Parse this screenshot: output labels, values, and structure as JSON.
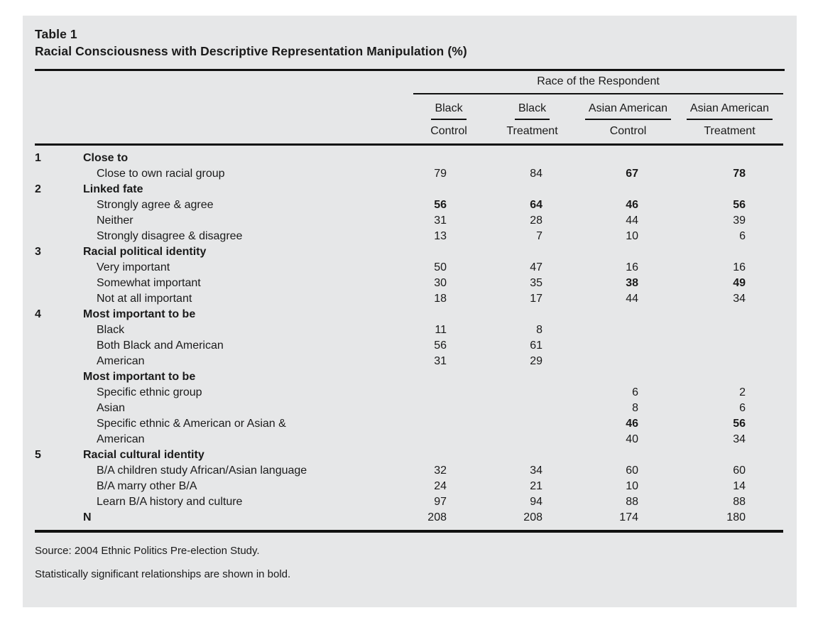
{
  "title": {
    "label": "Table 1",
    "subtitle": "Racial Consciousness with Descriptive Representation Manipulation (%)"
  },
  "header": {
    "span_label": "Race of the Respondent",
    "columns": [
      {
        "group": "Black",
        "sub": "Control"
      },
      {
        "group": "Black",
        "sub": "Treatment"
      },
      {
        "group": "Asian American",
        "sub": "Control"
      },
      {
        "group": "Asian American",
        "sub": "Treatment"
      }
    ]
  },
  "table": {
    "rows": [
      {
        "num": "1",
        "label": "Close to",
        "type": "section",
        "values": [
          "",
          "",
          "",
          ""
        ],
        "bold": [
          0,
          0,
          0,
          0
        ]
      },
      {
        "num": "",
        "label": "Close to own racial group",
        "type": "item",
        "values": [
          "79",
          "84",
          "67",
          "78"
        ],
        "bold": [
          0,
          0,
          1,
          1
        ]
      },
      {
        "num": "2",
        "label": "Linked fate",
        "type": "section",
        "values": [
          "",
          "",
          "",
          ""
        ],
        "bold": [
          0,
          0,
          0,
          0
        ]
      },
      {
        "num": "",
        "label": "Strongly agree & agree",
        "type": "item",
        "values": [
          "56",
          "64",
          "46",
          "56"
        ],
        "bold": [
          1,
          1,
          1,
          1
        ]
      },
      {
        "num": "",
        "label": "Neither",
        "type": "item",
        "values": [
          "31",
          "28",
          "44",
          "39"
        ],
        "bold": [
          0,
          0,
          0,
          0
        ]
      },
      {
        "num": "",
        "label": "Strongly disagree & disagree",
        "type": "item",
        "values": [
          "13",
          "7",
          "10",
          "6"
        ],
        "bold": [
          0,
          0,
          0,
          0
        ]
      },
      {
        "num": "3",
        "label": "Racial political identity",
        "type": "section",
        "values": [
          "",
          "",
          "",
          ""
        ],
        "bold": [
          0,
          0,
          0,
          0
        ]
      },
      {
        "num": "",
        "label": "Very important",
        "type": "item",
        "values": [
          "50",
          "47",
          "16",
          "16"
        ],
        "bold": [
          0,
          0,
          0,
          0
        ]
      },
      {
        "num": "",
        "label": "Somewhat important",
        "type": "item",
        "values": [
          "30",
          "35",
          "38",
          "49"
        ],
        "bold": [
          0,
          0,
          1,
          1
        ]
      },
      {
        "num": "",
        "label": "Not at all important",
        "type": "item",
        "values": [
          "18",
          "17",
          "44",
          "34"
        ],
        "bold": [
          0,
          0,
          0,
          0
        ]
      },
      {
        "num": "4",
        "label": "Most important to be",
        "type": "section",
        "values": [
          "",
          "",
          "",
          ""
        ],
        "bold": [
          0,
          0,
          0,
          0
        ]
      },
      {
        "num": "",
        "label": "Black",
        "type": "item",
        "values": [
          "11",
          "8",
          "",
          ""
        ],
        "bold": [
          0,
          0,
          0,
          0
        ]
      },
      {
        "num": "",
        "label": "Both Black and American",
        "type": "item",
        "values": [
          "56",
          "61",
          "",
          ""
        ],
        "bold": [
          0,
          0,
          0,
          0
        ]
      },
      {
        "num": "",
        "label": "American",
        "type": "item",
        "values": [
          "31",
          "29",
          "",
          ""
        ],
        "bold": [
          0,
          0,
          0,
          0
        ]
      },
      {
        "num": "",
        "label": "Most important to be",
        "type": "section",
        "values": [
          "",
          "",
          "",
          ""
        ],
        "bold": [
          0,
          0,
          0,
          0
        ]
      },
      {
        "num": "",
        "label": "Specific ethnic group",
        "type": "item",
        "values": [
          "",
          "",
          "6",
          "2"
        ],
        "bold": [
          0,
          0,
          0,
          0
        ]
      },
      {
        "num": "",
        "label": "Asian",
        "type": "item",
        "values": [
          "",
          "",
          "8",
          "6"
        ],
        "bold": [
          0,
          0,
          0,
          0
        ]
      },
      {
        "num": "",
        "label": "Specific ethnic & American or Asian &",
        "type": "item",
        "values": [
          "",
          "",
          "46",
          "56"
        ],
        "bold": [
          0,
          0,
          1,
          1
        ]
      },
      {
        "num": "",
        "label": "American",
        "type": "item",
        "values": [
          "",
          "",
          "40",
          "34"
        ],
        "bold": [
          0,
          0,
          0,
          0
        ]
      },
      {
        "num": "5",
        "label": "Racial cultural identity",
        "type": "section",
        "values": [
          "",
          "",
          "",
          ""
        ],
        "bold": [
          0,
          0,
          0,
          0
        ]
      },
      {
        "num": "",
        "label": "B/A children study African/Asian language",
        "type": "item",
        "values": [
          "32",
          "34",
          "60",
          "60"
        ],
        "bold": [
          0,
          0,
          0,
          0
        ]
      },
      {
        "num": "",
        "label": "B/A marry other B/A",
        "type": "item",
        "values": [
          "24",
          "21",
          "10",
          "14"
        ],
        "bold": [
          0,
          0,
          0,
          0
        ]
      },
      {
        "num": "",
        "label": "Learn B/A history and culture",
        "type": "item",
        "values": [
          "97",
          "94",
          "88",
          "88"
        ],
        "bold": [
          0,
          0,
          0,
          0
        ]
      },
      {
        "num": "",
        "label": "N",
        "type": "nrow",
        "values": [
          "208",
          "208",
          "174",
          "180"
        ],
        "bold": [
          0,
          0,
          0,
          0
        ]
      }
    ]
  },
  "footnotes": [
    "Source: 2004 Ethnic Politics Pre-election Study.",
    "Statistically significant relationships are shown in bold."
  ]
}
